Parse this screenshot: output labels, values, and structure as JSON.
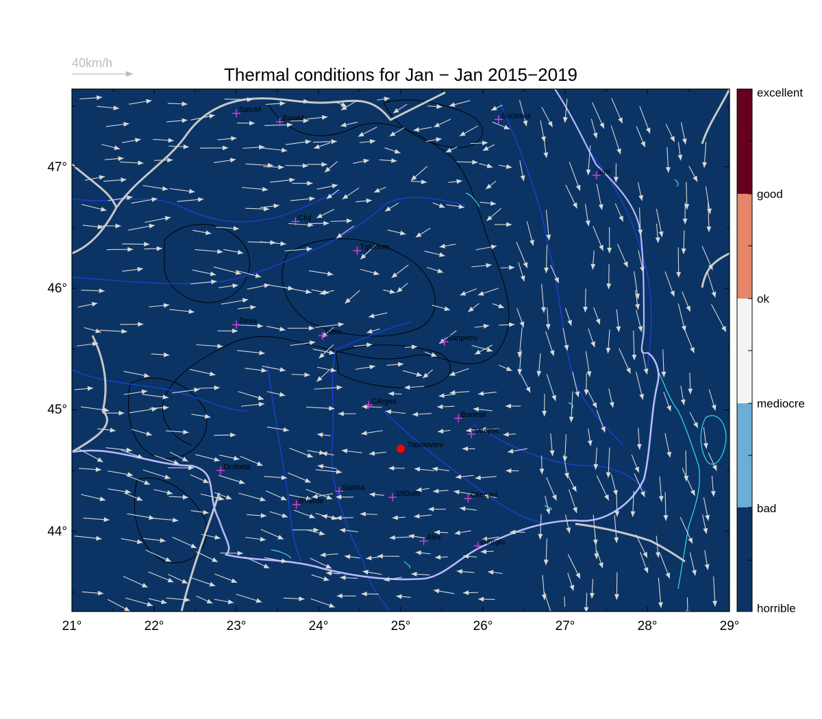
{
  "title": "Thermal conditions for Jan − Jan  2015−2019",
  "wind_scale": {
    "label": "40km/h",
    "color": "#bdbdbd"
  },
  "colors": {
    "map_background": "#0b3464",
    "rivers": "#1f3fe0",
    "borders": "#c8c8c8",
    "danube": "#b9b9ff",
    "lakes": "#34e0e8",
    "contours": "#000000",
    "arrows": "#d9d9d9",
    "city_marker": "#e040e0",
    "focus_point": "#ff0000"
  },
  "axes": {
    "x_range": [
      21,
      29
    ],
    "y_range": [
      43.34,
      47.64
    ],
    "x_ticks": [
      "21°",
      "22°",
      "23°",
      "24°",
      "25°",
      "26°",
      "27°",
      "28°",
      "29°"
    ],
    "y_ticks": [
      "44°",
      "45°",
      "46°",
      "47°"
    ]
  },
  "legend": {
    "categories": [
      {
        "label": "excellent",
        "color": "#67001f"
      },
      {
        "label": "good",
        "color": "#e6866a"
      },
      {
        "label": "ok",
        "color": "#f4f4f4"
      },
      {
        "label": "mediocre",
        "color": "#6aaed6"
      },
      {
        "label": "bad",
        "color": "#0b3464"
      },
      {
        "label": "horrible",
        "color": "#0b3464"
      }
    ]
  },
  "cities": [
    {
      "name": "SatuM",
      "lon": 23.0,
      "lat": 47.44
    },
    {
      "name": "BaiaM",
      "lon": 23.53,
      "lat": 47.37
    },
    {
      "name": "Suceava",
      "lon": 26.19,
      "lat": 47.39
    },
    {
      "name": "Iasi",
      "lon": 27.38,
      "lat": 46.93
    },
    {
      "name": "Cluj",
      "lon": 23.72,
      "lat": 46.55
    },
    {
      "name": "TgMures",
      "lon": 24.47,
      "lat": 46.31
    },
    {
      "name": "Deva",
      "lon": 23.0,
      "lat": 45.7
    },
    {
      "name": "Sibiu",
      "lon": 24.05,
      "lat": 45.61
    },
    {
      "name": "Sanpetru",
      "lon": 25.53,
      "lat": 45.56
    },
    {
      "name": "CArges",
      "lon": 24.61,
      "lat": 45.04
    },
    {
      "name": "Banesti",
      "lon": 25.7,
      "lat": 44.93
    },
    {
      "name": "Strejnic",
      "lon": 25.86,
      "lat": 44.8
    },
    {
      "name": "Drobeta",
      "lon": 22.81,
      "lat": 44.5
    },
    {
      "name": "Slatina",
      "lon": 24.25,
      "lat": 44.33
    },
    {
      "name": "StlGum",
      "lon": 24.9,
      "lat": 44.28
    },
    {
      "name": "Clinceni",
      "lon": 25.82,
      "lat": 44.27
    },
    {
      "name": "BVerde",
      "lon": 23.73,
      "lat": 44.22
    },
    {
      "name": "Alex",
      "lon": 25.28,
      "lat": 43.92
    },
    {
      "name": "Giurgiu",
      "lon": 25.94,
      "lat": 43.88
    }
  ],
  "focus_point": {
    "name": "Topoloveni",
    "lon": 25.0,
    "lat": 44.68
  }
}
